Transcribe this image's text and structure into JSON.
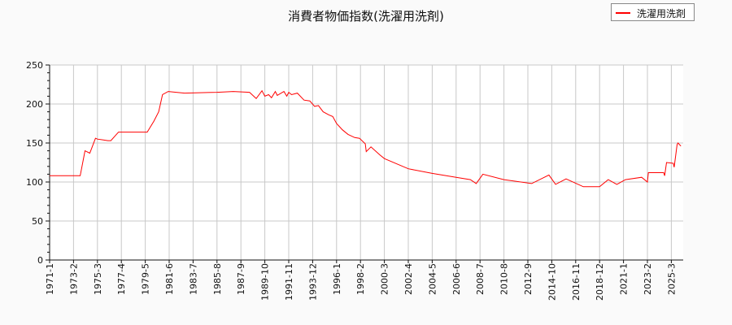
{
  "chart_data": {
    "type": "line",
    "title": "消費者物価指数(洗濯用洗剤)",
    "xlabel": "",
    "ylabel": "",
    "ylim": [
      0,
      250
    ],
    "yticks": [
      0,
      50,
      100,
      150,
      200,
      250
    ],
    "xticks": [
      "1971-1",
      "1973-2",
      "1975-3",
      "1977-4",
      "1979-5",
      "1981-6",
      "1983-7",
      "1985-8",
      "1987-9",
      "1989-10",
      "1991-11",
      "1993-12",
      "1996-1",
      "1998-2",
      "2000-3",
      "2002-4",
      "2004-5",
      "2006-6",
      "2008-7",
      "2010-8",
      "2012-9",
      "2014-10",
      "2016-11",
      "2018-12",
      "2021-1",
      "2023-2",
      "2025-3"
    ],
    "grid": true,
    "legend_position": "top-right",
    "series": [
      {
        "name": "洗濯用洗剤",
        "color": "#ff0000",
        "points": [
          [
            "1971-1",
            108
          ],
          [
            "1973-9",
            108
          ],
          [
            "1974-2",
            140
          ],
          [
            "1974-7",
            137
          ],
          [
            "1975-1",
            156
          ],
          [
            "1975-3",
            155
          ],
          [
            "1976-2",
            153
          ],
          [
            "1976-5",
            153
          ],
          [
            "1977-1",
            164
          ],
          [
            "1979-7",
            164
          ],
          [
            "1980-2",
            178
          ],
          [
            "1980-7",
            190
          ],
          [
            "1980-11",
            212
          ],
          [
            "1981-5",
            216
          ],
          [
            "1982-10",
            214
          ],
          [
            "1985-8",
            215
          ],
          [
            "1987-1",
            216
          ],
          [
            "1988-6",
            215
          ],
          [
            "1989-1",
            207
          ],
          [
            "1989-7",
            217
          ],
          [
            "1989-10",
            210
          ],
          [
            "1990-2",
            212
          ],
          [
            "1990-5",
            208
          ],
          [
            "1990-9",
            216
          ],
          [
            "1990-11",
            211
          ],
          [
            "1991-6",
            216
          ],
          [
            "1991-9",
            210
          ],
          [
            "1991-11",
            215
          ],
          [
            "1992-2",
            212
          ],
          [
            "1992-8",
            214
          ],
          [
            "1993-3",
            205
          ],
          [
            "1993-9",
            204
          ],
          [
            "1994-2",
            197
          ],
          [
            "1994-6",
            198
          ],
          [
            "1994-11",
            190
          ],
          [
            "1995-5",
            186
          ],
          [
            "1995-9",
            184
          ],
          [
            "1996-1",
            175
          ],
          [
            "1996-7",
            167
          ],
          [
            "1997-1",
            161
          ],
          [
            "1997-8",
            157
          ],
          [
            "1998-1",
            156
          ],
          [
            "1998-7",
            149
          ],
          [
            "1998-8",
            139
          ],
          [
            "1999-1",
            145
          ],
          [
            "1999-10",
            135
          ],
          [
            "2000-3",
            130
          ],
          [
            "2002-4",
            117
          ],
          [
            "2004-5",
            111
          ],
          [
            "2006-6",
            106
          ],
          [
            "2007-9",
            103
          ],
          [
            "2008-3",
            98
          ],
          [
            "2008-10",
            110
          ],
          [
            "2010-8",
            103
          ],
          [
            "2013-1",
            98
          ],
          [
            "2014-7",
            109
          ],
          [
            "2015-2",
            97
          ],
          [
            "2016-1",
            104
          ],
          [
            "2017-7",
            94
          ],
          [
            "2018-12",
            94
          ],
          [
            "2019-9",
            103
          ],
          [
            "2020-6",
            97
          ],
          [
            "2021-3",
            103
          ],
          [
            "2022-8",
            106
          ],
          [
            "2023-2",
            100
          ],
          [
            "2023-3",
            112
          ],
          [
            "2024-7",
            112
          ],
          [
            "2024-8",
            108
          ],
          [
            "2024-10",
            125
          ],
          [
            "2025-5",
            124
          ],
          [
            "2025-6",
            119
          ],
          [
            "2025-9",
            148
          ],
          [
            "2025-10",
            150
          ],
          [
            "2026-1",
            146
          ]
        ]
      }
    ]
  }
}
